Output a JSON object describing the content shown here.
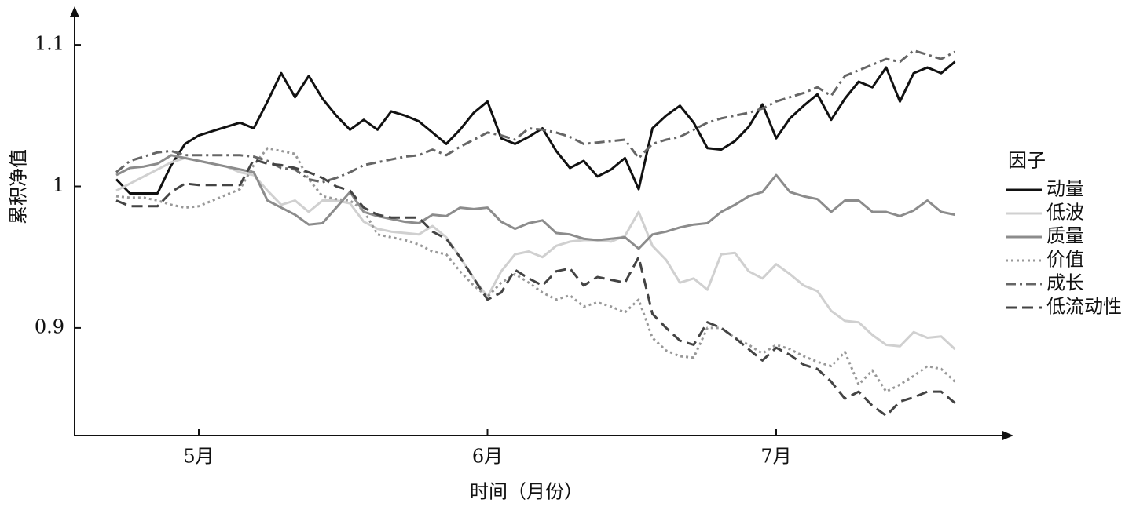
{
  "chart_data": {
    "type": "line",
    "xlabel": "时间（月份）",
    "ylabel": "累积净值",
    "legend_title": "因子",
    "legend_position": "right",
    "categories": [
      null,
      null,
      null,
      null,
      null,
      null,
      "5月",
      null,
      null,
      null,
      null,
      null,
      null,
      null,
      null,
      null,
      null,
      null,
      null,
      null,
      null,
      null,
      null,
      null,
      null,
      null,
      null,
      "6月",
      null,
      null,
      null,
      null,
      null,
      null,
      null,
      null,
      null,
      null,
      null,
      null,
      null,
      null,
      null,
      null,
      null,
      null,
      null,
      null,
      "7月",
      null,
      null,
      null,
      null,
      null,
      null,
      null,
      null,
      null,
      null,
      null,
      null,
      null
    ],
    "ylim": [
      0.824,
      1.125
    ],
    "yticks": [
      0.9,
      1.0,
      1.1
    ],
    "grid": false,
    "series": [
      {
        "name": "动量",
        "color": "#111111",
        "style": "solid",
        "values": [
          1.005,
          0.995,
          0.995,
          0.995,
          1.015,
          1.03,
          1.036,
          1.039,
          1.042,
          1.045,
          1.041,
          1.06,
          1.08,
          1.063,
          1.078,
          1.062,
          1.05,
          1.04,
          1.047,
          1.04,
          1.053,
          1.05,
          1.046,
          1.038,
          1.03,
          1.04,
          1.052,
          1.06,
          1.034,
          1.03,
          1.035,
          1.041,
          1.025,
          1.013,
          1.018,
          1.007,
          1.012,
          1.02,
          0.998,
          1.041,
          1.05,
          1.057,
          1.045,
          1.027,
          1.026,
          1.032,
          1.042,
          1.058,
          1.034,
          1.048,
          1.057,
          1.065,
          1.047,
          1.062,
          1.074,
          1.07,
          1.084,
          1.06,
          1.08,
          1.084,
          1.08,
          1.088
        ]
      },
      {
        "name": "低波",
        "color": "#d0d0d0",
        "style": "solid",
        "values": [
          0.997,
          1.002,
          1.007,
          1.012,
          1.017,
          1.02,
          1.018,
          1.016,
          1.014,
          1.01,
          1.008,
          0.997,
          0.987,
          0.99,
          0.982,
          0.99,
          0.99,
          0.988,
          0.975,
          0.97,
          0.968,
          0.967,
          0.966,
          0.972,
          0.964,
          0.95,
          0.935,
          0.922,
          0.94,
          0.952,
          0.954,
          0.95,
          0.958,
          0.961,
          0.962,
          0.962,
          0.961,
          0.965,
          0.982,
          0.958,
          0.948,
          0.932,
          0.935,
          0.927,
          0.952,
          0.953,
          0.94,
          0.935,
          0.945,
          0.938,
          0.93,
          0.926,
          0.912,
          0.905,
          0.904,
          0.895,
          0.888,
          0.887,
          0.897,
          0.893,
          0.894,
          0.885
        ]
      },
      {
        "name": "质量",
        "color": "#8c8c8c",
        "style": "solid",
        "values": [
          1.008,
          1.013,
          1.014,
          1.016,
          1.022,
          1.02,
          1.018,
          1.016,
          1.014,
          1.012,
          1.01,
          0.99,
          0.985,
          0.98,
          0.973,
          0.974,
          0.985,
          0.996,
          0.982,
          0.979,
          0.977,
          0.975,
          0.974,
          0.98,
          0.979,
          0.985,
          0.984,
          0.985,
          0.975,
          0.97,
          0.974,
          0.976,
          0.967,
          0.966,
          0.963,
          0.962,
          0.963,
          0.964,
          0.956,
          0.966,
          0.968,
          0.971,
          0.973,
          0.974,
          0.982,
          0.987,
          0.993,
          0.996,
          1.008,
          0.996,
          0.993,
          0.991,
          0.982,
          0.99,
          0.99,
          0.982,
          0.982,
          0.979,
          0.983,
          0.99,
          0.982,
          0.98
        ]
      },
      {
        "name": "价值",
        "color": "#999999",
        "style": "dotted",
        "values": [
          0.993,
          0.992,
          0.992,
          0.99,
          0.987,
          0.985,
          0.986,
          0.99,
          0.994,
          0.998,
          1.015,
          1.027,
          1.025,
          1.023,
          1.005,
          0.993,
          0.991,
          0.99,
          0.983,
          0.966,
          0.964,
          0.962,
          0.959,
          0.954,
          0.952,
          0.94,
          0.93,
          0.922,
          0.932,
          0.938,
          0.932,
          0.925,
          0.92,
          0.923,
          0.915,
          0.918,
          0.915,
          0.911,
          0.92,
          0.893,
          0.884,
          0.88,
          0.879,
          0.9,
          0.9,
          0.893,
          0.888,
          0.882,
          0.888,
          0.885,
          0.88,
          0.876,
          0.873,
          0.883,
          0.86,
          0.87,
          0.855,
          0.86,
          0.866,
          0.873,
          0.871,
          0.862
        ]
      },
      {
        "name": "成长",
        "color": "#666666",
        "style": "dashdot",
        "values": [
          1.01,
          1.018,
          1.021,
          1.024,
          1.025,
          1.022,
          1.022,
          1.022,
          1.022,
          1.022,
          1.021,
          1.018,
          1.013,
          1.012,
          1.005,
          1.003,
          1.006,
          1.01,
          1.015,
          1.017,
          1.019,
          1.021,
          1.022,
          1.026,
          1.022,
          1.028,
          1.033,
          1.038,
          1.036,
          1.033,
          1.041,
          1.04,
          1.038,
          1.035,
          1.03,
          1.031,
          1.032,
          1.033,
          1.02,
          1.03,
          1.033,
          1.035,
          1.04,
          1.045,
          1.048,
          1.05,
          1.052,
          1.055,
          1.06,
          1.063,
          1.066,
          1.07,
          1.064,
          1.078,
          1.082,
          1.086,
          1.09,
          1.088,
          1.096,
          1.093,
          1.09,
          1.095
        ]
      },
      {
        "name": "低流动性",
        "color": "#444444",
        "style": "dashed",
        "values": [
          0.99,
          0.986,
          0.986,
          0.986,
          0.996,
          1.002,
          1.001,
          1.001,
          1.001,
          1.001,
          1.019,
          1.016,
          1.015,
          1.013,
          1.01,
          1.006,
          1.0,
          0.997,
          0.985,
          0.98,
          0.978,
          0.978,
          0.978,
          0.968,
          0.963,
          0.95,
          0.935,
          0.92,
          0.925,
          0.941,
          0.935,
          0.93,
          0.94,
          0.942,
          0.93,
          0.936,
          0.934,
          0.932,
          0.95,
          0.91,
          0.9,
          0.891,
          0.888,
          0.904,
          0.9,
          0.893,
          0.885,
          0.877,
          0.886,
          0.881,
          0.874,
          0.871,
          0.862,
          0.85,
          0.855,
          0.845,
          0.838,
          0.848,
          0.851,
          0.855,
          0.855,
          0.847
        ]
      }
    ]
  }
}
